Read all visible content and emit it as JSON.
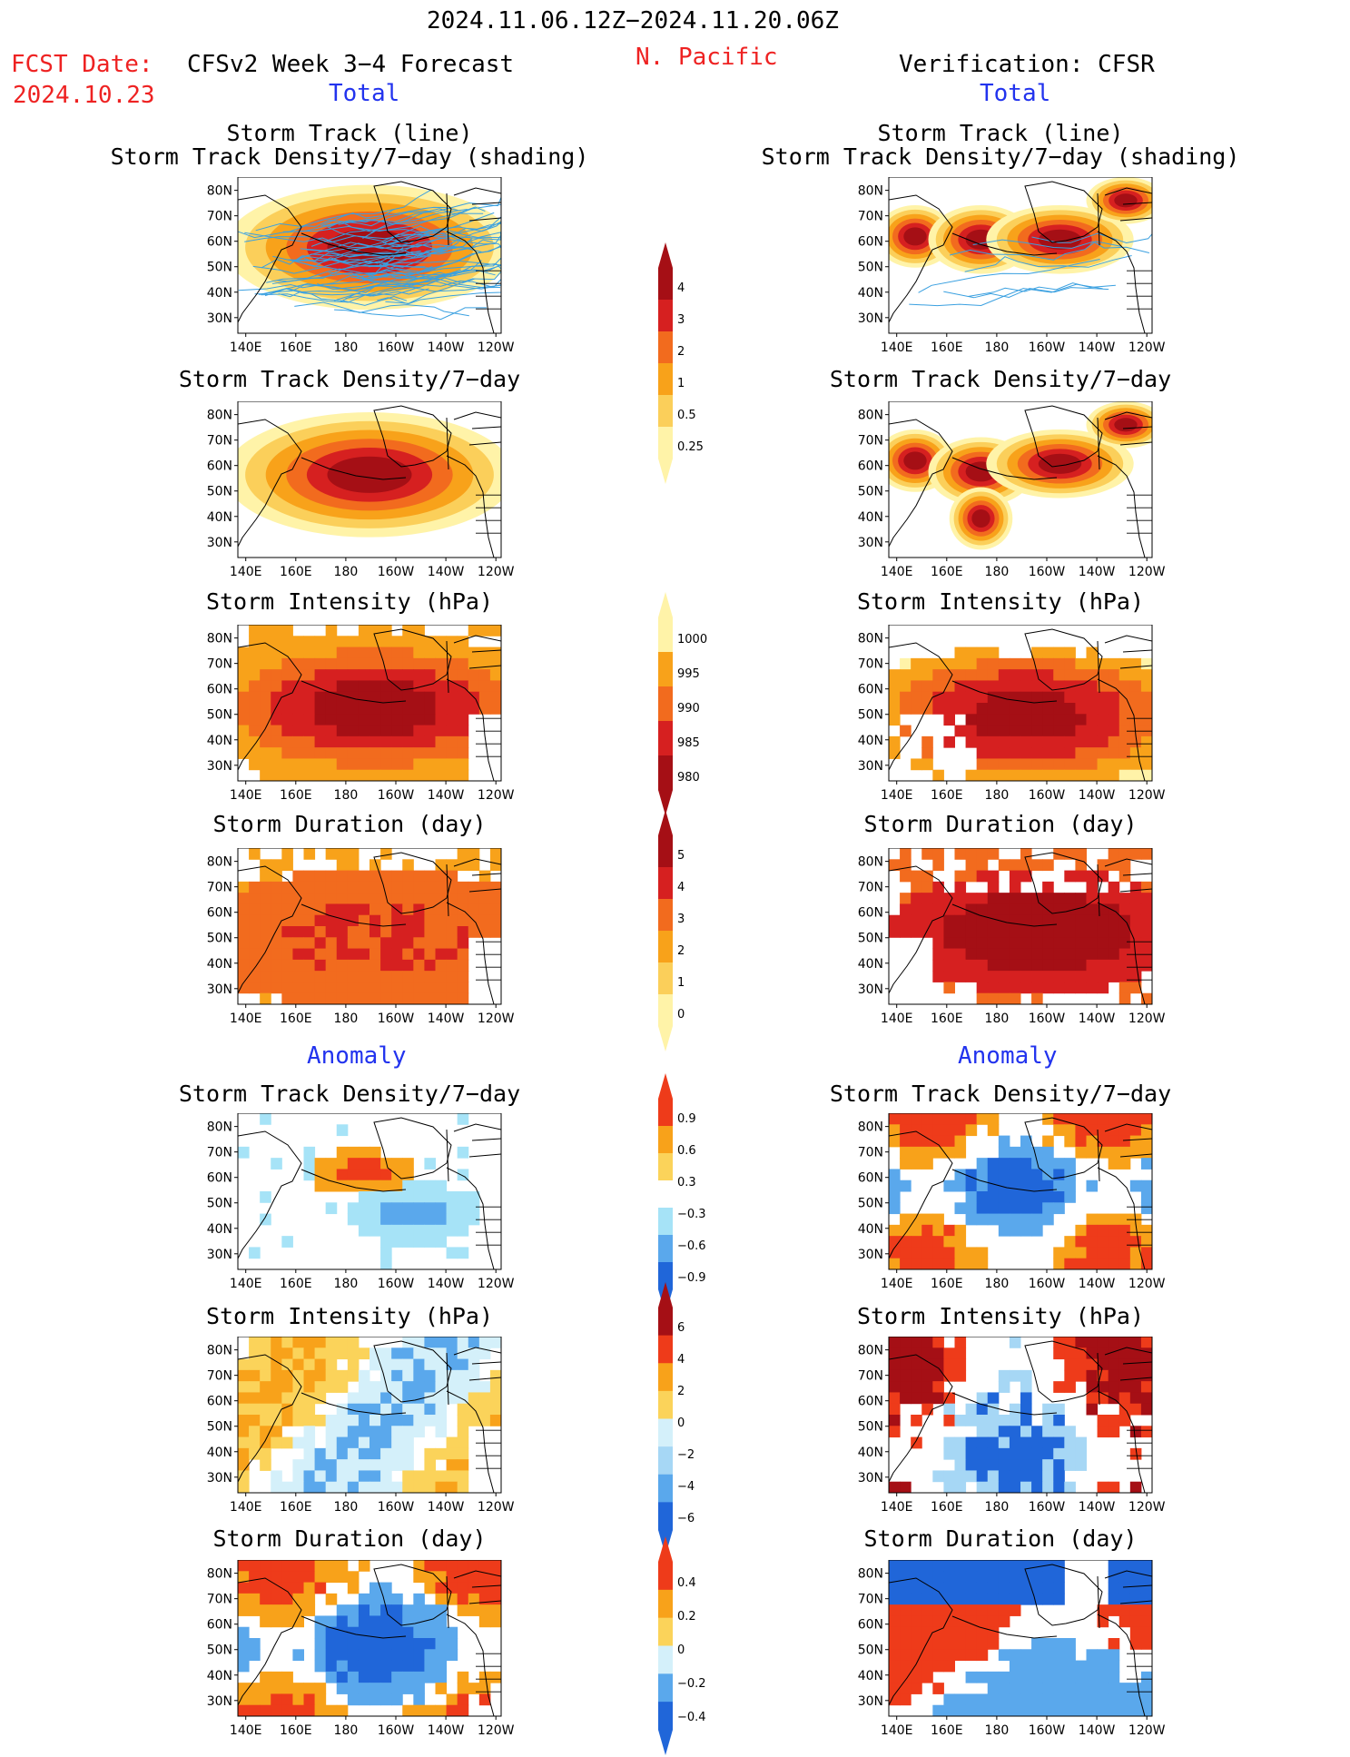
{
  "header": {
    "period": "2024.11.06.12Z−2024.11.20.06Z",
    "fcst_label": "FCST Date:",
    "fcst_date": "2024.10.23",
    "model": "CFSv2 Week 3−4 Forecast",
    "region": "N. Pacific",
    "verification": "Verification: CFSR"
  },
  "sections": {
    "total": "Total",
    "anomaly": "Anomaly"
  },
  "panel_titles": {
    "track_line": "Storm Track (line)",
    "track_density_shading": "Storm Track Density/7−day (shading)",
    "track_density": "Storm Track Density/7−day",
    "intensity": "Storm Intensity (hPa)",
    "duration": "Storm Duration (day)"
  },
  "axes": {
    "lat_ticks": [
      "80N",
      "70N",
      "60N",
      "50N",
      "40N",
      "30N"
    ],
    "lon_ticks": [
      "140E",
      "160E",
      "180",
      "160W",
      "140W",
      "120W"
    ]
  },
  "colorbars": {
    "track_density": {
      "labels": [
        "4",
        "3",
        "2",
        "1",
        "0.5",
        "0.25"
      ],
      "colors": [
        "#a50f15",
        "#d62020",
        "#f26b1e",
        "#f8a21a",
        "#fbcf5a",
        "#fff3a8"
      ]
    },
    "intensity": {
      "labels": [
        "1000",
        "995",
        "990",
        "985",
        "980"
      ],
      "colors": [
        "#fff3a8",
        "#f8a21a",
        "#f26b1e",
        "#d62020",
        "#a50f15"
      ]
    },
    "duration": {
      "labels": [
        "5",
        "4",
        "3",
        "2",
        "1",
        "0"
      ],
      "colors": [
        "#a50f15",
        "#d62020",
        "#f26b1e",
        "#f8a21a",
        "#fbcf5a",
        "#fff3a8"
      ]
    },
    "density_anom": {
      "labels": [
        "0.9",
        "0.6",
        "0.3",
        "−0.3",
        "−0.6",
        "−0.9"
      ],
      "colors": [
        "#ee3b1a",
        "#f8a21a",
        "#fbd35a",
        "#ffffff",
        "#a6e3f7",
        "#5aa8ec",
        "#2066d9"
      ]
    },
    "intensity_anom": {
      "labels": [
        "6",
        "4",
        "2",
        "0",
        "−2",
        "−4",
        "−6"
      ],
      "colors": [
        "#a50f15",
        "#ee3b1a",
        "#f8a21a",
        "#fbd35a",
        "#d4f0fa",
        "#a6d7f5",
        "#5aa8ec",
        "#2066d9"
      ]
    },
    "duration_anom": {
      "labels": [
        "0.4",
        "0.2",
        "0",
        "−0.2",
        "−0.4"
      ],
      "colors": [
        "#ee3b1a",
        "#f8a21a",
        "#fbd35a",
        "#d4f0fa",
        "#5aa8ec",
        "#2066d9"
      ]
    }
  },
  "colors": {
    "red_text": "#ee2222",
    "blue_text": "#2233ee",
    "track_line": "#3aa0e0"
  }
}
